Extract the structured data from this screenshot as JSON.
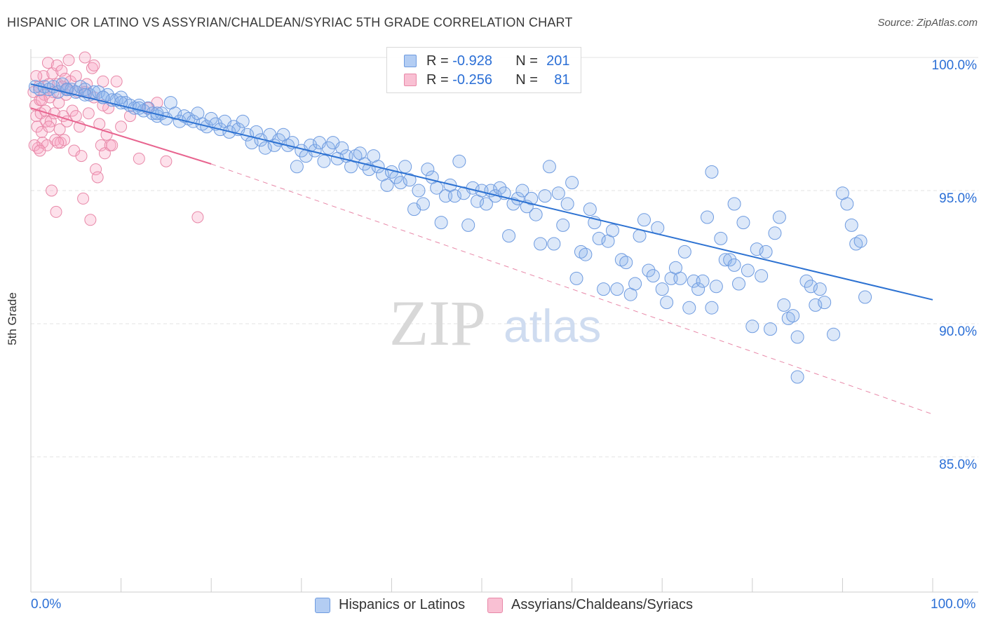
{
  "title": "HISPANIC OR LATINO VS ASSYRIAN/CHALDEAN/SYRIAC 5TH GRADE CORRELATION CHART",
  "source": "Source: ZipAtlas.com",
  "watermark": {
    "zip": "ZIP",
    "atlas": "atlas"
  },
  "legend": {
    "rows": [
      {
        "r_label": "R =",
        "r_value": "-0.928",
        "n_label": "N =",
        "n_value": "201",
        "color": "#6e9be0"
      },
      {
        "r_label": "R =",
        "r_value": "-0.256",
        "n_label": "N =",
        "n_value": "81",
        "color": "#e888a8"
      }
    ]
  },
  "bottom_legend": [
    {
      "label": "Hispanics or Latinos",
      "color": "#6e9be0"
    },
    {
      "label": "Assyrians/Chaldeans/Syriacs",
      "color": "#e888a8"
    }
  ],
  "chart_data": {
    "type": "scatter",
    "title": "HISPANIC OR LATINO VS ASSYRIAN/CHALDEAN/SYRIAC 5TH GRADE CORRELATION CHART",
    "xlabel": "",
    "ylabel": "5th Grade",
    "xlim": [
      0,
      100
    ],
    "ylim": [
      80.5,
      100.7
    ],
    "x_tick_labels": [
      "0.0%",
      "100.0%"
    ],
    "y_ticks": [
      85,
      90,
      95,
      100
    ],
    "y_tick_labels": [
      "85.0%",
      "90.0%",
      "95.0%",
      "100.0%"
    ],
    "grid": true,
    "legend_position": "top-center",
    "series": [
      {
        "name": "Hispanics or Latinos",
        "color": "#6e9be0",
        "trend": {
          "x": [
            0,
            100
          ],
          "y": [
            99.0,
            90.9
          ],
          "style": "solid"
        },
        "points": [
          [
            0.5,
            98.9
          ],
          [
            1,
            98.8
          ],
          [
            1.5,
            98.9
          ],
          [
            2,
            98.8
          ],
          [
            2.5,
            98.9
          ],
          [
            3,
            98.7
          ],
          [
            3.5,
            99.0
          ],
          [
            4,
            98.8
          ],
          [
            4.5,
            98.8
          ],
          [
            5,
            98.7
          ],
          [
            5.5,
            98.9
          ],
          [
            6,
            98.8
          ],
          [
            6.5,
            98.6
          ],
          [
            7,
            98.7
          ],
          [
            7.5,
            98.7
          ],
          [
            8,
            98.5
          ],
          [
            8.5,
            98.6
          ],
          [
            9,
            98.4
          ],
          [
            9.5,
            98.4
          ],
          [
            10,
            98.5
          ],
          [
            10.5,
            98.3
          ],
          [
            11,
            98.2
          ],
          [
            11.5,
            98.1
          ],
          [
            12,
            98.2
          ],
          [
            12.5,
            98.0
          ],
          [
            13,
            98.1
          ],
          [
            13.5,
            97.9
          ],
          [
            14,
            97.8
          ],
          [
            14.5,
            97.9
          ],
          [
            15,
            97.7
          ],
          [
            15.5,
            98.3
          ],
          [
            16,
            97.9
          ],
          [
            16.5,
            97.6
          ],
          [
            17,
            97.8
          ],
          [
            17.5,
            97.7
          ],
          [
            18,
            97.6
          ],
          [
            18.5,
            97.9
          ],
          [
            19,
            97.5
          ],
          [
            19.5,
            97.4
          ],
          [
            20,
            97.7
          ],
          [
            20.5,
            97.5
          ],
          [
            21,
            97.3
          ],
          [
            21.5,
            97.6
          ],
          [
            22,
            97.2
          ],
          [
            22.5,
            97.4
          ],
          [
            23,
            97.3
          ],
          [
            23.5,
            97.6
          ],
          [
            24,
            97.1
          ],
          [
            24.5,
            96.8
          ],
          [
            25,
            97.2
          ],
          [
            25.5,
            96.9
          ],
          [
            26,
            96.6
          ],
          [
            26.5,
            97.1
          ],
          [
            27,
            96.7
          ],
          [
            27.5,
            96.9
          ],
          [
            28,
            97.1
          ],
          [
            28.5,
            96.7
          ],
          [
            29,
            96.8
          ],
          [
            29.5,
            95.9
          ],
          [
            30,
            96.5
          ],
          [
            30.5,
            96.3
          ],
          [
            31,
            96.7
          ],
          [
            31.5,
            96.5
          ],
          [
            32,
            96.8
          ],
          [
            32.5,
            96.1
          ],
          [
            33,
            96.6
          ],
          [
            33.5,
            96.8
          ],
          [
            34,
            96.2
          ],
          [
            34.5,
            96.6
          ],
          [
            35,
            96.3
          ],
          [
            35.5,
            95.9
          ],
          [
            36,
            96.3
          ],
          [
            36.5,
            96.4
          ],
          [
            37,
            96.0
          ],
          [
            37.5,
            95.8
          ],
          [
            38,
            96.3
          ],
          [
            38.5,
            95.9
          ],
          [
            39,
            95.6
          ],
          [
            39.5,
            95.2
          ],
          [
            40,
            95.7
          ],
          [
            40.5,
            95.5
          ],
          [
            41,
            95.3
          ],
          [
            41.5,
            95.9
          ],
          [
            42,
            95.4
          ],
          [
            42.5,
            94.3
          ],
          [
            43,
            95.0
          ],
          [
            43.5,
            94.5
          ],
          [
            44,
            95.8
          ],
          [
            44.5,
            95.5
          ],
          [
            45,
            95.1
          ],
          [
            45.5,
            93.8
          ],
          [
            46,
            94.8
          ],
          [
            46.5,
            95.2
          ],
          [
            47,
            94.8
          ],
          [
            47.5,
            96.1
          ],
          [
            48,
            94.9
          ],
          [
            48.5,
            93.7
          ],
          [
            49,
            95.1
          ],
          [
            49.5,
            94.6
          ],
          [
            50,
            95.0
          ],
          [
            50.5,
            94.5
          ],
          [
            51,
            95.0
          ],
          [
            51.5,
            94.8
          ],
          [
            52,
            95.1
          ],
          [
            52.5,
            94.9
          ],
          [
            53,
            93.3
          ],
          [
            53.5,
            94.5
          ],
          [
            54,
            94.7
          ],
          [
            54.5,
            95.0
          ],
          [
            55,
            94.4
          ],
          [
            55.5,
            94.7
          ],
          [
            56,
            94.1
          ],
          [
            56.5,
            93.0
          ],
          [
            57,
            94.8
          ],
          [
            57.5,
            95.9
          ],
          [
            58,
            93.0
          ],
          [
            58.5,
            94.9
          ],
          [
            59,
            93.7
          ],
          [
            59.5,
            94.5
          ],
          [
            60,
            95.3
          ],
          [
            60.5,
            91.7
          ],
          [
            61,
            92.7
          ],
          [
            61.5,
            92.6
          ],
          [
            62,
            94.3
          ],
          [
            62.5,
            93.8
          ],
          [
            63,
            93.2
          ],
          [
            63.5,
            91.3
          ],
          [
            64,
            93.1
          ],
          [
            64.5,
            93.5
          ],
          [
            65,
            91.3
          ],
          [
            65.5,
            92.4
          ],
          [
            66,
            92.3
          ],
          [
            66.5,
            91.1
          ],
          [
            67,
            91.5
          ],
          [
            67.5,
            93.3
          ],
          [
            68,
            93.9
          ],
          [
            68.5,
            92.0
          ],
          [
            69,
            91.8
          ],
          [
            69.5,
            93.6
          ],
          [
            70,
            91.3
          ],
          [
            70.5,
            90.8
          ],
          [
            71,
            91.7
          ],
          [
            71.5,
            92.1
          ],
          [
            72,
            91.7
          ],
          [
            72.5,
            92.7
          ],
          [
            73,
            90.6
          ],
          [
            73.5,
            91.6
          ],
          [
            74,
            91.3
          ],
          [
            74.5,
            91.6
          ],
          [
            75,
            94.0
          ],
          [
            75.5,
            90.6
          ],
          [
            76,
            91.4
          ],
          [
            76.5,
            93.2
          ],
          [
            77,
            92.4
          ],
          [
            77.5,
            92.4
          ],
          [
            78,
            92.2
          ],
          [
            78.5,
            91.5
          ],
          [
            79,
            93.8
          ],
          [
            79.5,
            92.0
          ],
          [
            80,
            89.9
          ],
          [
            80.5,
            92.8
          ],
          [
            81,
            91.8
          ],
          [
            81.5,
            92.7
          ],
          [
            82,
            89.8
          ],
          [
            82.5,
            93.4
          ],
          [
            83,
            94.0
          ],
          [
            83.5,
            90.7
          ],
          [
            84,
            90.2
          ],
          [
            84.5,
            90.3
          ],
          [
            85,
            89.5
          ],
          [
            75.5,
            95.7
          ],
          [
            78,
            94.5
          ],
          [
            85,
            88.0
          ],
          [
            86,
            91.6
          ],
          [
            86.5,
            91.4
          ],
          [
            87,
            90.7
          ],
          [
            87.5,
            91.3
          ],
          [
            88,
            90.8
          ],
          [
            89,
            89.6
          ],
          [
            90,
            94.9
          ],
          [
            90.5,
            94.5
          ],
          [
            91,
            93.7
          ],
          [
            91.5,
            93.0
          ],
          [
            92,
            93.1
          ],
          [
            92.5,
            91.0
          ],
          [
            4,
            98.8
          ],
          [
            6,
            98.6
          ],
          [
            8,
            98.5
          ],
          [
            10,
            98.3
          ],
          [
            12,
            98.1
          ],
          [
            14,
            97.9
          ]
        ]
      },
      {
        "name": "Assyrians/Chaldeans/Syriacs",
        "color": "#e888a8",
        "trend": {
          "x": [
            0,
            20
          ],
          "y": [
            98.1,
            96.0
          ],
          "style": "solid",
          "extension_to": [
            100,
            86.6
          ],
          "extension_style": "dashed"
        },
        "points": [
          [
            0.3,
            98.7
          ],
          [
            0.5,
            98.2
          ],
          [
            0.6,
            97.8
          ],
          [
            0.7,
            97.4
          ],
          [
            0.8,
            96.6
          ],
          [
            0.9,
            98.9
          ],
          [
            1.0,
            98.4
          ],
          [
            1.1,
            97.9
          ],
          [
            1.2,
            97.2
          ],
          [
            1.3,
            96.8
          ],
          [
            1.4,
            99.3
          ],
          [
            1.5,
            98.6
          ],
          [
            1.6,
            98.0
          ],
          [
            1.7,
            97.6
          ],
          [
            1.8,
            96.7
          ],
          [
            1.9,
            99.8
          ],
          [
            2.0,
            99.0
          ],
          [
            2.1,
            98.5
          ],
          [
            2.2,
            97.6
          ],
          [
            2.3,
            95.0
          ],
          [
            2.4,
            99.4
          ],
          [
            2.5,
            98.7
          ],
          [
            2.6,
            97.9
          ],
          [
            2.7,
            96.9
          ],
          [
            2.8,
            94.2
          ],
          [
            2.9,
            99.7
          ],
          [
            3.0,
            99.0
          ],
          [
            3.1,
            98.3
          ],
          [
            3.2,
            97.3
          ],
          [
            3.3,
            96.8
          ],
          [
            3.4,
            99.5
          ],
          [
            3.5,
            98.9
          ],
          [
            3.6,
            97.8
          ],
          [
            3.7,
            96.9
          ],
          [
            3.8,
            99.2
          ],
          [
            3.9,
            98.6
          ],
          [
            4.0,
            97.6
          ],
          [
            4.2,
            99.9
          ],
          [
            4.4,
            99.1
          ],
          [
            4.6,
            98.0
          ],
          [
            4.8,
            96.5
          ],
          [
            5.0,
            99.3
          ],
          [
            5.2,
            98.7
          ],
          [
            5.4,
            97.4
          ],
          [
            5.6,
            96.3
          ],
          [
            5.8,
            94.7
          ],
          [
            6.0,
            100.0
          ],
          [
            6.2,
            99.0
          ],
          [
            6.4,
            97.9
          ],
          [
            6.6,
            93.9
          ],
          [
            6.8,
            99.6
          ],
          [
            7.0,
            98.5
          ],
          [
            7.2,
            95.8
          ],
          [
            7.4,
            95.5
          ],
          [
            7.6,
            97.5
          ],
          [
            7.8,
            96.7
          ],
          [
            8.0,
            99.1
          ],
          [
            8.2,
            96.4
          ],
          [
            8.4,
            97.1
          ],
          [
            8.6,
            98.1
          ],
          [
            8.8,
            96.7
          ],
          [
            1.2,
            98.4
          ],
          [
            2.0,
            97.4
          ],
          [
            3.0,
            96.8
          ],
          [
            4.0,
            98.8
          ],
          [
            5.0,
            97.8
          ],
          [
            6.0,
            98.7
          ],
          [
            7.0,
            99.7
          ],
          [
            8.0,
            98.2
          ],
          [
            9.0,
            96.7
          ],
          [
            9.5,
            99.1
          ],
          [
            10.0,
            97.4
          ],
          [
            11.0,
            97.8
          ],
          [
            12.0,
            96.2
          ],
          [
            13.0,
            98.1
          ],
          [
            14.0,
            98.3
          ],
          [
            15.0,
            96.1
          ],
          [
            0.4,
            96.7
          ],
          [
            0.6,
            99.3
          ],
          [
            1.0,
            96.5
          ],
          [
            18.5,
            94.0
          ]
        ]
      }
    ]
  }
}
